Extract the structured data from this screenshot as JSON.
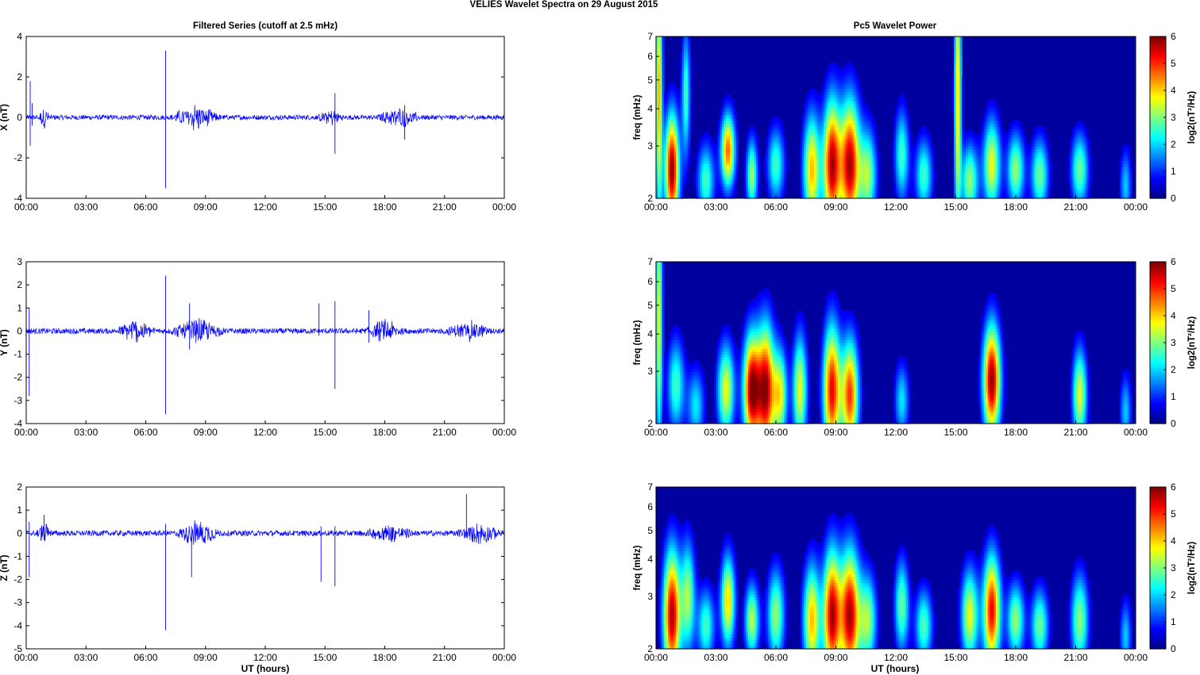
{
  "figure": {
    "title": "VELIES Wavelet Spectra on 29 August    2015",
    "left_title": "Filtered Series (cutoff at 2.5 mHz)",
    "right_title": "Pc5 Wavelet Power",
    "x_axis_label": "UT (hours)"
  },
  "chart_data": [
    {
      "type": "line",
      "component": "X",
      "ylabel": "X (nT)",
      "ylim": [
        -4,
        4
      ],
      "yticks": [
        -4,
        -2,
        0,
        2,
        4
      ],
      "xticks": [
        "00:00",
        "03:00",
        "06:00",
        "09:00",
        "12:00",
        "15:00",
        "18:00",
        "21:00",
        "00:00"
      ],
      "xlim_hours": [
        0,
        24
      ],
      "line_color": "#0000ff",
      "noise_amplitude_nT": 0.12,
      "activity_bursts": [
        {
          "start_h": 0.6,
          "end_h": 1.2,
          "amplitude_nT": 0.4
        },
        {
          "start_h": 7.2,
          "end_h": 9.8,
          "amplitude_nT": 0.5
        },
        {
          "start_h": 14.6,
          "end_h": 16.0,
          "amplitude_nT": 0.3
        },
        {
          "start_h": 17.6,
          "end_h": 19.8,
          "amplitude_nT": 0.4
        }
      ],
      "spikes": [
        {
          "hour": 0.2,
          "min": -1.4,
          "max": 1.8
        },
        {
          "hour": 0.3,
          "min": -0.4,
          "max": 0.7
        },
        {
          "hour": 7.0,
          "min": -3.5,
          "max": 3.3
        },
        {
          "hour": 15.5,
          "min": -1.8,
          "max": 1.2
        },
        {
          "hour": 19.0,
          "min": -1.1,
          "max": 0.6
        },
        {
          "hour": 24.0,
          "min": -0.3,
          "max": 0.8
        }
      ]
    },
    {
      "type": "line",
      "component": "Y",
      "ylabel": "Y (nT)",
      "ylim": [
        -4,
        3
      ],
      "yticks": [
        -4,
        -3,
        -2,
        -1,
        0,
        1,
        2,
        3
      ],
      "xticks": [
        "00:00",
        "03:00",
        "06:00",
        "09:00",
        "12:00",
        "15:00",
        "18:00",
        "21:00",
        "00:00"
      ],
      "xlim_hours": [
        0,
        24
      ],
      "line_color": "#0000ff",
      "noise_amplitude_nT": 0.12,
      "activity_bursts": [
        {
          "start_h": 4.5,
          "end_h": 6.5,
          "amplitude_nT": 0.4
        },
        {
          "start_h": 7.2,
          "end_h": 10.0,
          "amplitude_nT": 0.4
        },
        {
          "start_h": 17.0,
          "end_h": 19.0,
          "amplitude_nT": 0.35
        },
        {
          "start_h": 21.0,
          "end_h": 23.5,
          "amplitude_nT": 0.3
        }
      ],
      "spikes": [
        {
          "hour": 0.15,
          "min": -2.8,
          "max": 1.0
        },
        {
          "hour": 7.0,
          "min": -3.6,
          "max": 2.4
        },
        {
          "hour": 8.2,
          "min": -0.8,
          "max": 1.2
        },
        {
          "hour": 14.7,
          "min": -0.2,
          "max": 1.2
        },
        {
          "hour": 15.5,
          "min": -2.5,
          "max": 1.3
        },
        {
          "hour": 17.2,
          "min": -0.5,
          "max": 0.9
        }
      ]
    },
    {
      "type": "line",
      "component": "Z",
      "ylabel": "Z (nT)",
      "ylim": [
        -5,
        2
      ],
      "yticks": [
        -5,
        -4,
        -3,
        -2,
        -1,
        0,
        1,
        2
      ],
      "xticks": [
        "00:00",
        "03:00",
        "06:00",
        "09:00",
        "12:00",
        "15:00",
        "18:00",
        "21:00",
        "00:00"
      ],
      "xlim_hours": [
        0,
        24
      ],
      "line_color": "#0000ff",
      "noise_amplitude_nT": 0.12,
      "activity_bursts": [
        {
          "start_h": 0.5,
          "end_h": 1.3,
          "amplitude_nT": 0.35
        },
        {
          "start_h": 7.5,
          "end_h": 9.8,
          "amplitude_nT": 0.45
        },
        {
          "start_h": 17.0,
          "end_h": 19.5,
          "amplitude_nT": 0.3
        },
        {
          "start_h": 21.5,
          "end_h": 24.0,
          "amplitude_nT": 0.3
        }
      ],
      "spikes": [
        {
          "hour": 0.15,
          "min": -1.9,
          "max": 0.5
        },
        {
          "hour": 0.9,
          "min": -0.3,
          "max": 0.8
        },
        {
          "hour": 7.0,
          "min": -4.2,
          "max": 0.4
        },
        {
          "hour": 8.3,
          "min": -1.9,
          "max": 0.3
        },
        {
          "hour": 14.8,
          "min": -2.1,
          "max": 0.3
        },
        {
          "hour": 15.5,
          "min": -2.3,
          "max": 0.3
        },
        {
          "hour": 22.1,
          "min": -0.2,
          "max": 1.7
        },
        {
          "hour": 24.0,
          "min": -0.3,
          "max": 0.8
        }
      ]
    },
    {
      "type": "heatmap",
      "component": "X",
      "title": "Pc5 Wavelet Power",
      "ylabel": "freq (mHz)",
      "y_scale": "log",
      "ylim": [
        2,
        7
      ],
      "yticks": [
        2,
        3,
        4,
        5,
        6,
        7
      ],
      "xticks": [
        "00:00",
        "03:00",
        "06:00",
        "09:00",
        "12:00",
        "15:00",
        "18:00",
        "21:00",
        "00:00"
      ],
      "colorbar": {
        "label": "log2(nT²/Hz)",
        "ticks": [
          0,
          1,
          2,
          3,
          4,
          5,
          6
        ],
        "colormap": "jet"
      },
      "blobs": [
        {
          "hour": 0.15,
          "freq_mHz": 4.5,
          "power": 4.0,
          "width_h": 0.12,
          "spread": 0.7
        },
        {
          "hour": 0.8,
          "freq_mHz": 2.5,
          "power": 5.8,
          "width_h": 0.25,
          "spread": 0.3
        },
        {
          "hour": 1.5,
          "freq_mHz": 4.5,
          "power": 2.5,
          "width_h": 0.15,
          "spread": 0.35
        },
        {
          "hour": 2.5,
          "freq_mHz": 2.3,
          "power": 2.5,
          "width_h": 0.3,
          "spread": 0.2
        },
        {
          "hour": 3.6,
          "freq_mHz": 2.9,
          "power": 4.5,
          "width_h": 0.25,
          "spread": 0.2
        },
        {
          "hour": 4.8,
          "freq_mHz": 2.4,
          "power": 3.0,
          "width_h": 0.2,
          "spread": 0.2
        },
        {
          "hour": 6.0,
          "freq_mHz": 2.6,
          "power": 2.5,
          "width_h": 0.3,
          "spread": 0.2
        },
        {
          "hour": 7.8,
          "freq_mHz": 2.5,
          "power": 4.0,
          "width_h": 0.3,
          "spread": 0.3
        },
        {
          "hour": 8.8,
          "freq_mHz": 2.6,
          "power": 5.5,
          "width_h": 0.3,
          "spread": 0.35
        },
        {
          "hour": 9.7,
          "freq_mHz": 2.6,
          "power": 5.6,
          "width_h": 0.35,
          "spread": 0.35
        },
        {
          "hour": 10.6,
          "freq_mHz": 2.4,
          "power": 3.0,
          "width_h": 0.3,
          "spread": 0.25
        },
        {
          "hour": 12.3,
          "freq_mHz": 2.8,
          "power": 2.5,
          "width_h": 0.25,
          "spread": 0.25
        },
        {
          "hour": 13.4,
          "freq_mHz": 2.4,
          "power": 2.5,
          "width_h": 0.3,
          "spread": 0.2
        },
        {
          "hour": 15.1,
          "freq_mHz": 4.5,
          "power": 4.0,
          "width_h": 0.12,
          "spread": 0.7
        },
        {
          "hour": 15.7,
          "freq_mHz": 2.3,
          "power": 3.0,
          "width_h": 0.3,
          "spread": 0.2
        },
        {
          "hour": 16.8,
          "freq_mHz": 2.6,
          "power": 3.5,
          "width_h": 0.3,
          "spread": 0.25
        },
        {
          "hour": 18.0,
          "freq_mHz": 2.5,
          "power": 3.0,
          "width_h": 0.3,
          "spread": 0.2
        },
        {
          "hour": 19.2,
          "freq_mHz": 2.4,
          "power": 2.8,
          "width_h": 0.3,
          "spread": 0.2
        },
        {
          "hour": 21.2,
          "freq_mHz": 2.5,
          "power": 2.8,
          "width_h": 0.3,
          "spread": 0.2
        },
        {
          "hour": 23.5,
          "freq_mHz": 2.2,
          "power": 1.8,
          "width_h": 0.2,
          "spread": 0.2
        }
      ]
    },
    {
      "type": "heatmap",
      "component": "Y",
      "ylabel": "freq (mHz)",
      "y_scale": "log",
      "ylim": [
        2,
        7
      ],
      "yticks": [
        2,
        3,
        4,
        5,
        6,
        7
      ],
      "xticks": [
        "00:00",
        "03:00",
        "06:00",
        "09:00",
        "12:00",
        "15:00",
        "18:00",
        "21:00",
        "00:00"
      ],
      "colorbar": {
        "label": "log2(nT²/Hz)",
        "ticks": [
          0,
          1,
          2,
          3,
          4,
          5,
          6
        ],
        "colormap": "jet"
      },
      "blobs": [
        {
          "hour": 0.15,
          "freq_mHz": 4.5,
          "power": 3.5,
          "width_h": 0.12,
          "spread": 0.7
        },
        {
          "hour": 1.0,
          "freq_mHz": 2.7,
          "power": 2.5,
          "width_h": 0.3,
          "spread": 0.25
        },
        {
          "hour": 2.0,
          "freq_mHz": 2.3,
          "power": 2.0,
          "width_h": 0.3,
          "spread": 0.2
        },
        {
          "hour": 3.5,
          "freq_mHz": 2.6,
          "power": 3.5,
          "width_h": 0.3,
          "spread": 0.25
        },
        {
          "hour": 4.8,
          "freq_mHz": 2.6,
          "power": 5.8,
          "width_h": 0.3,
          "spread": 0.3
        },
        {
          "hour": 5.5,
          "freq_mHz": 2.6,
          "power": 5.5,
          "width_h": 0.3,
          "spread": 0.35
        },
        {
          "hour": 6.2,
          "freq_mHz": 2.5,
          "power": 3.5,
          "width_h": 0.25,
          "spread": 0.25
        },
        {
          "hour": 7.2,
          "freq_mHz": 2.6,
          "power": 3.5,
          "width_h": 0.25,
          "spread": 0.3
        },
        {
          "hour": 8.8,
          "freq_mHz": 2.6,
          "power": 5.2,
          "width_h": 0.3,
          "spread": 0.35
        },
        {
          "hour": 9.7,
          "freq_mHz": 2.5,
          "power": 4.8,
          "width_h": 0.3,
          "spread": 0.3
        },
        {
          "hour": 12.3,
          "freq_mHz": 2.4,
          "power": 2.0,
          "width_h": 0.25,
          "spread": 0.2
        },
        {
          "hour": 16.8,
          "freq_mHz": 2.8,
          "power": 5.8,
          "width_h": 0.3,
          "spread": 0.3
        },
        {
          "hour": 21.2,
          "freq_mHz": 2.5,
          "power": 3.5,
          "width_h": 0.25,
          "spread": 0.25
        },
        {
          "hour": 23.5,
          "freq_mHz": 2.2,
          "power": 1.8,
          "width_h": 0.2,
          "spread": 0.2
        }
      ]
    },
    {
      "type": "heatmap",
      "component": "Z",
      "ylabel": "freq (mHz)",
      "y_scale": "log",
      "ylim": [
        2,
        7
      ],
      "yticks": [
        2,
        3,
        4,
        5,
        6,
        7
      ],
      "xticks": [
        "00:00",
        "03:00",
        "06:00",
        "09:00",
        "12:00",
        "15:00",
        "18:00",
        "21:00",
        "00:00"
      ],
      "colorbar": {
        "label": "log2(nT²/Hz)",
        "ticks": [
          0,
          1,
          2,
          3,
          4,
          5,
          6
        ],
        "colormap": "jet"
      },
      "blobs": [
        {
          "hour": 0.8,
          "freq_mHz": 2.6,
          "power": 5.6,
          "width_h": 0.3,
          "spread": 0.35
        },
        {
          "hour": 1.6,
          "freq_mHz": 3.0,
          "power": 3.0,
          "width_h": 0.25,
          "spread": 0.3
        },
        {
          "hour": 2.5,
          "freq_mHz": 2.4,
          "power": 2.5,
          "width_h": 0.3,
          "spread": 0.2
        },
        {
          "hour": 3.6,
          "freq_mHz": 2.9,
          "power": 3.8,
          "width_h": 0.25,
          "spread": 0.25
        },
        {
          "hour": 4.8,
          "freq_mHz": 2.5,
          "power": 3.2,
          "width_h": 0.25,
          "spread": 0.2
        },
        {
          "hour": 6.0,
          "freq_mHz": 2.6,
          "power": 3.0,
          "width_h": 0.3,
          "spread": 0.25
        },
        {
          "hour": 7.8,
          "freq_mHz": 2.5,
          "power": 4.0,
          "width_h": 0.3,
          "spread": 0.3
        },
        {
          "hour": 8.8,
          "freq_mHz": 2.6,
          "power": 5.5,
          "width_h": 0.3,
          "spread": 0.35
        },
        {
          "hour": 9.7,
          "freq_mHz": 2.6,
          "power": 5.6,
          "width_h": 0.35,
          "spread": 0.35
        },
        {
          "hour": 10.6,
          "freq_mHz": 2.5,
          "power": 3.0,
          "width_h": 0.3,
          "spread": 0.25
        },
        {
          "hour": 12.3,
          "freq_mHz": 2.8,
          "power": 2.8,
          "width_h": 0.25,
          "spread": 0.25
        },
        {
          "hour": 13.4,
          "freq_mHz": 2.4,
          "power": 2.6,
          "width_h": 0.3,
          "spread": 0.2
        },
        {
          "hour": 15.7,
          "freq_mHz": 2.6,
          "power": 3.5,
          "width_h": 0.3,
          "spread": 0.25
        },
        {
          "hour": 16.8,
          "freq_mHz": 2.7,
          "power": 5.2,
          "width_h": 0.3,
          "spread": 0.3
        },
        {
          "hour": 18.0,
          "freq_mHz": 2.5,
          "power": 3.0,
          "width_h": 0.3,
          "spread": 0.2
        },
        {
          "hour": 19.2,
          "freq_mHz": 2.4,
          "power": 2.8,
          "width_h": 0.3,
          "spread": 0.2
        },
        {
          "hour": 21.2,
          "freq_mHz": 2.5,
          "power": 3.0,
          "width_h": 0.3,
          "spread": 0.25
        },
        {
          "hour": 23.5,
          "freq_mHz": 2.2,
          "power": 1.8,
          "width_h": 0.2,
          "spread": 0.2
        }
      ]
    }
  ]
}
